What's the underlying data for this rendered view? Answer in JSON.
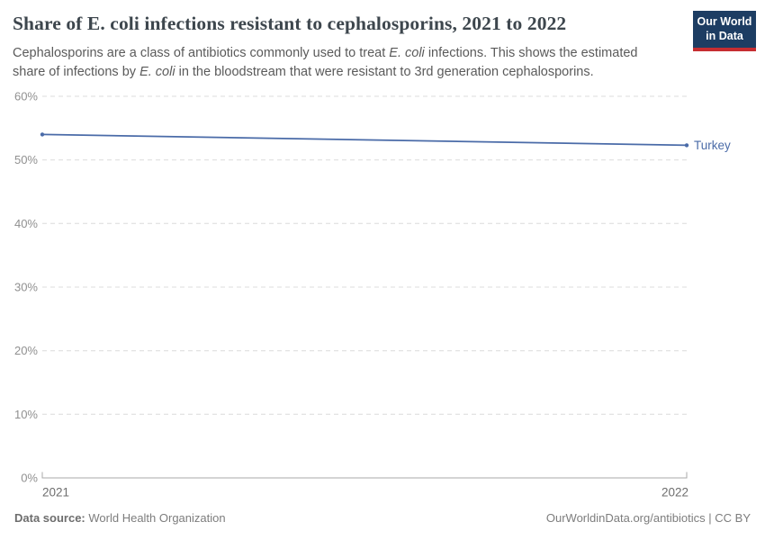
{
  "header": {
    "title": "Share of E. coli infections resistant to cephalosporins, 2021 to 2022",
    "subtitle_segments": [
      {
        "text": "Cephalosporins are a class of antibiotics commonly used to treat "
      },
      {
        "text": "E. coli",
        "italic": true
      },
      {
        "text": " infections. This shows the estimated"
      },
      {
        "break": true
      },
      {
        "text": "share of infections by "
      },
      {
        "text": "E. coli",
        "italic": true
      },
      {
        "text": " in the bloodstream that were resistant to 3rd generation cephalosporins."
      }
    ]
  },
  "logo": {
    "line1": "Our World",
    "line2": "in Data"
  },
  "chart": {
    "y_ticks": [
      "60%",
      "50%",
      "40%",
      "30%",
      "20%",
      "10%",
      "0%"
    ],
    "x_ticks": [
      "2021",
      "2022"
    ]
  },
  "chart_data": {
    "type": "line",
    "title": "Share of E. coli infections resistant to cephalosporins, 2021 to 2022",
    "x": [
      2021,
      2022
    ],
    "series": [
      {
        "name": "Turkey",
        "values": [
          54.0,
          52.3
        ],
        "color": "#4a6ba8"
      }
    ],
    "xlabel": "",
    "ylabel": "",
    "ylim": [
      0,
      60
    ],
    "y_tick_interval": 10,
    "grid": true,
    "grid_style": "dashed",
    "legend_position": "end-of-line label"
  },
  "footer": {
    "source_label": "Data source:",
    "source_value": "World Health Organization",
    "credit": "OurWorldinData.org/antibiotics | CC BY"
  },
  "colors": {
    "logo_navy": "#1d3d63",
    "logo_red": "#c62d31",
    "series_blue": "#4a6ba8",
    "gridline": "#dcdcdc",
    "axis": "#a8a8a8"
  }
}
